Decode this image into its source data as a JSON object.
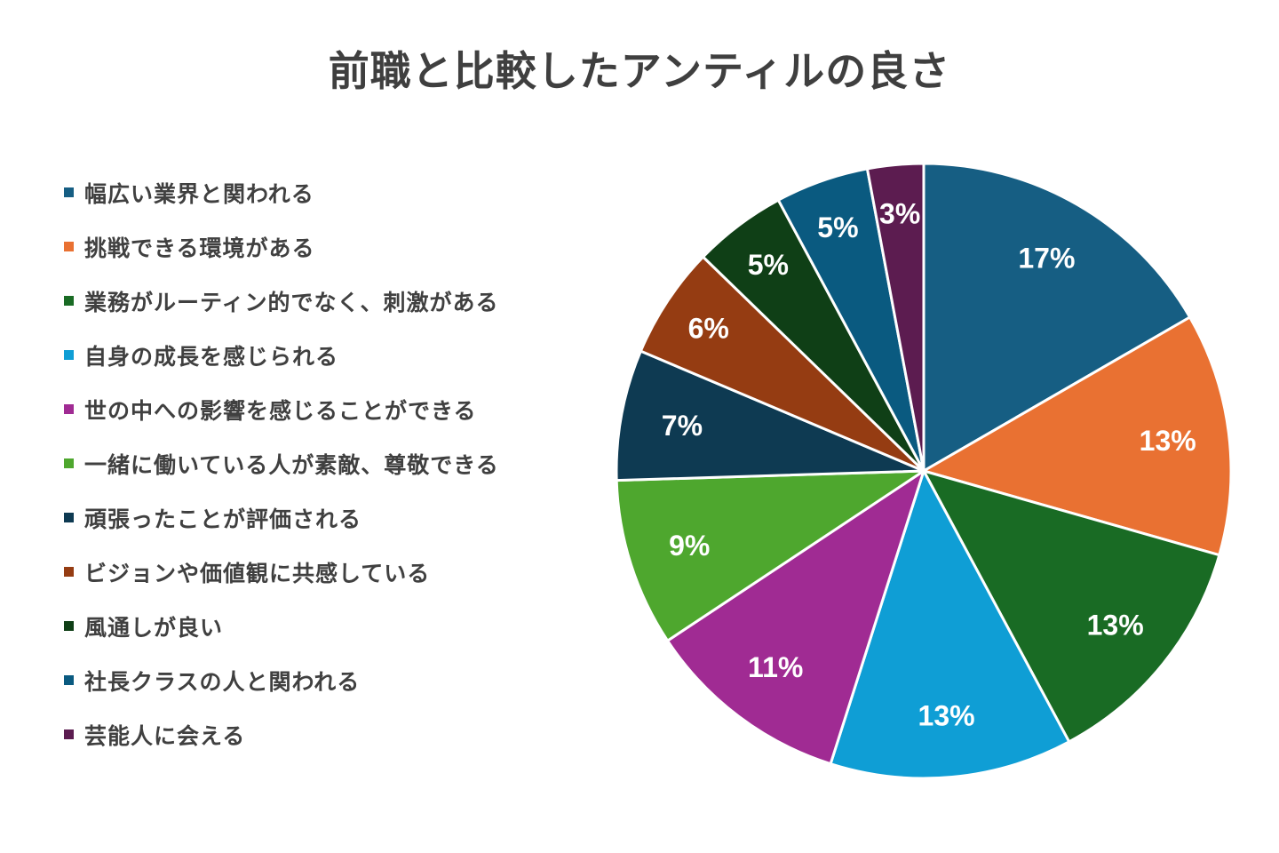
{
  "chart_data": {
    "type": "pie",
    "title": "前職と比較したアンティルの良さ",
    "legend_position": "left",
    "categories": [
      "幅広い業界と関われる",
      "挑戦できる環境がある",
      "業務がルーティン的でなく、刺激がある",
      "自身の成長を感じられる",
      "世の中への影響を感じることができる",
      "一緒に働いている人が素敵、尊敬できる",
      "頑張ったことが評価される",
      "ビジョンや価値観に共感している",
      "風通しが良い",
      "社長クラスの人と関われる",
      "芸能人に会える"
    ],
    "values": [
      17,
      13,
      13,
      13,
      11,
      9,
      7,
      6,
      5,
      5,
      3
    ],
    "labels": [
      "17%",
      "13%",
      "13%",
      "13%",
      "11%",
      "9%",
      "7%",
      "6%",
      "5%",
      "5%",
      "3%"
    ],
    "colors": [
      "#165e83",
      "#e97132",
      "#196b24",
      "#0f9ed5",
      "#a02b93",
      "#4ea72e",
      "#0e3a52",
      "#953c12",
      "#0f3f16",
      "#0a5a80",
      "#5c1c50"
    ]
  }
}
